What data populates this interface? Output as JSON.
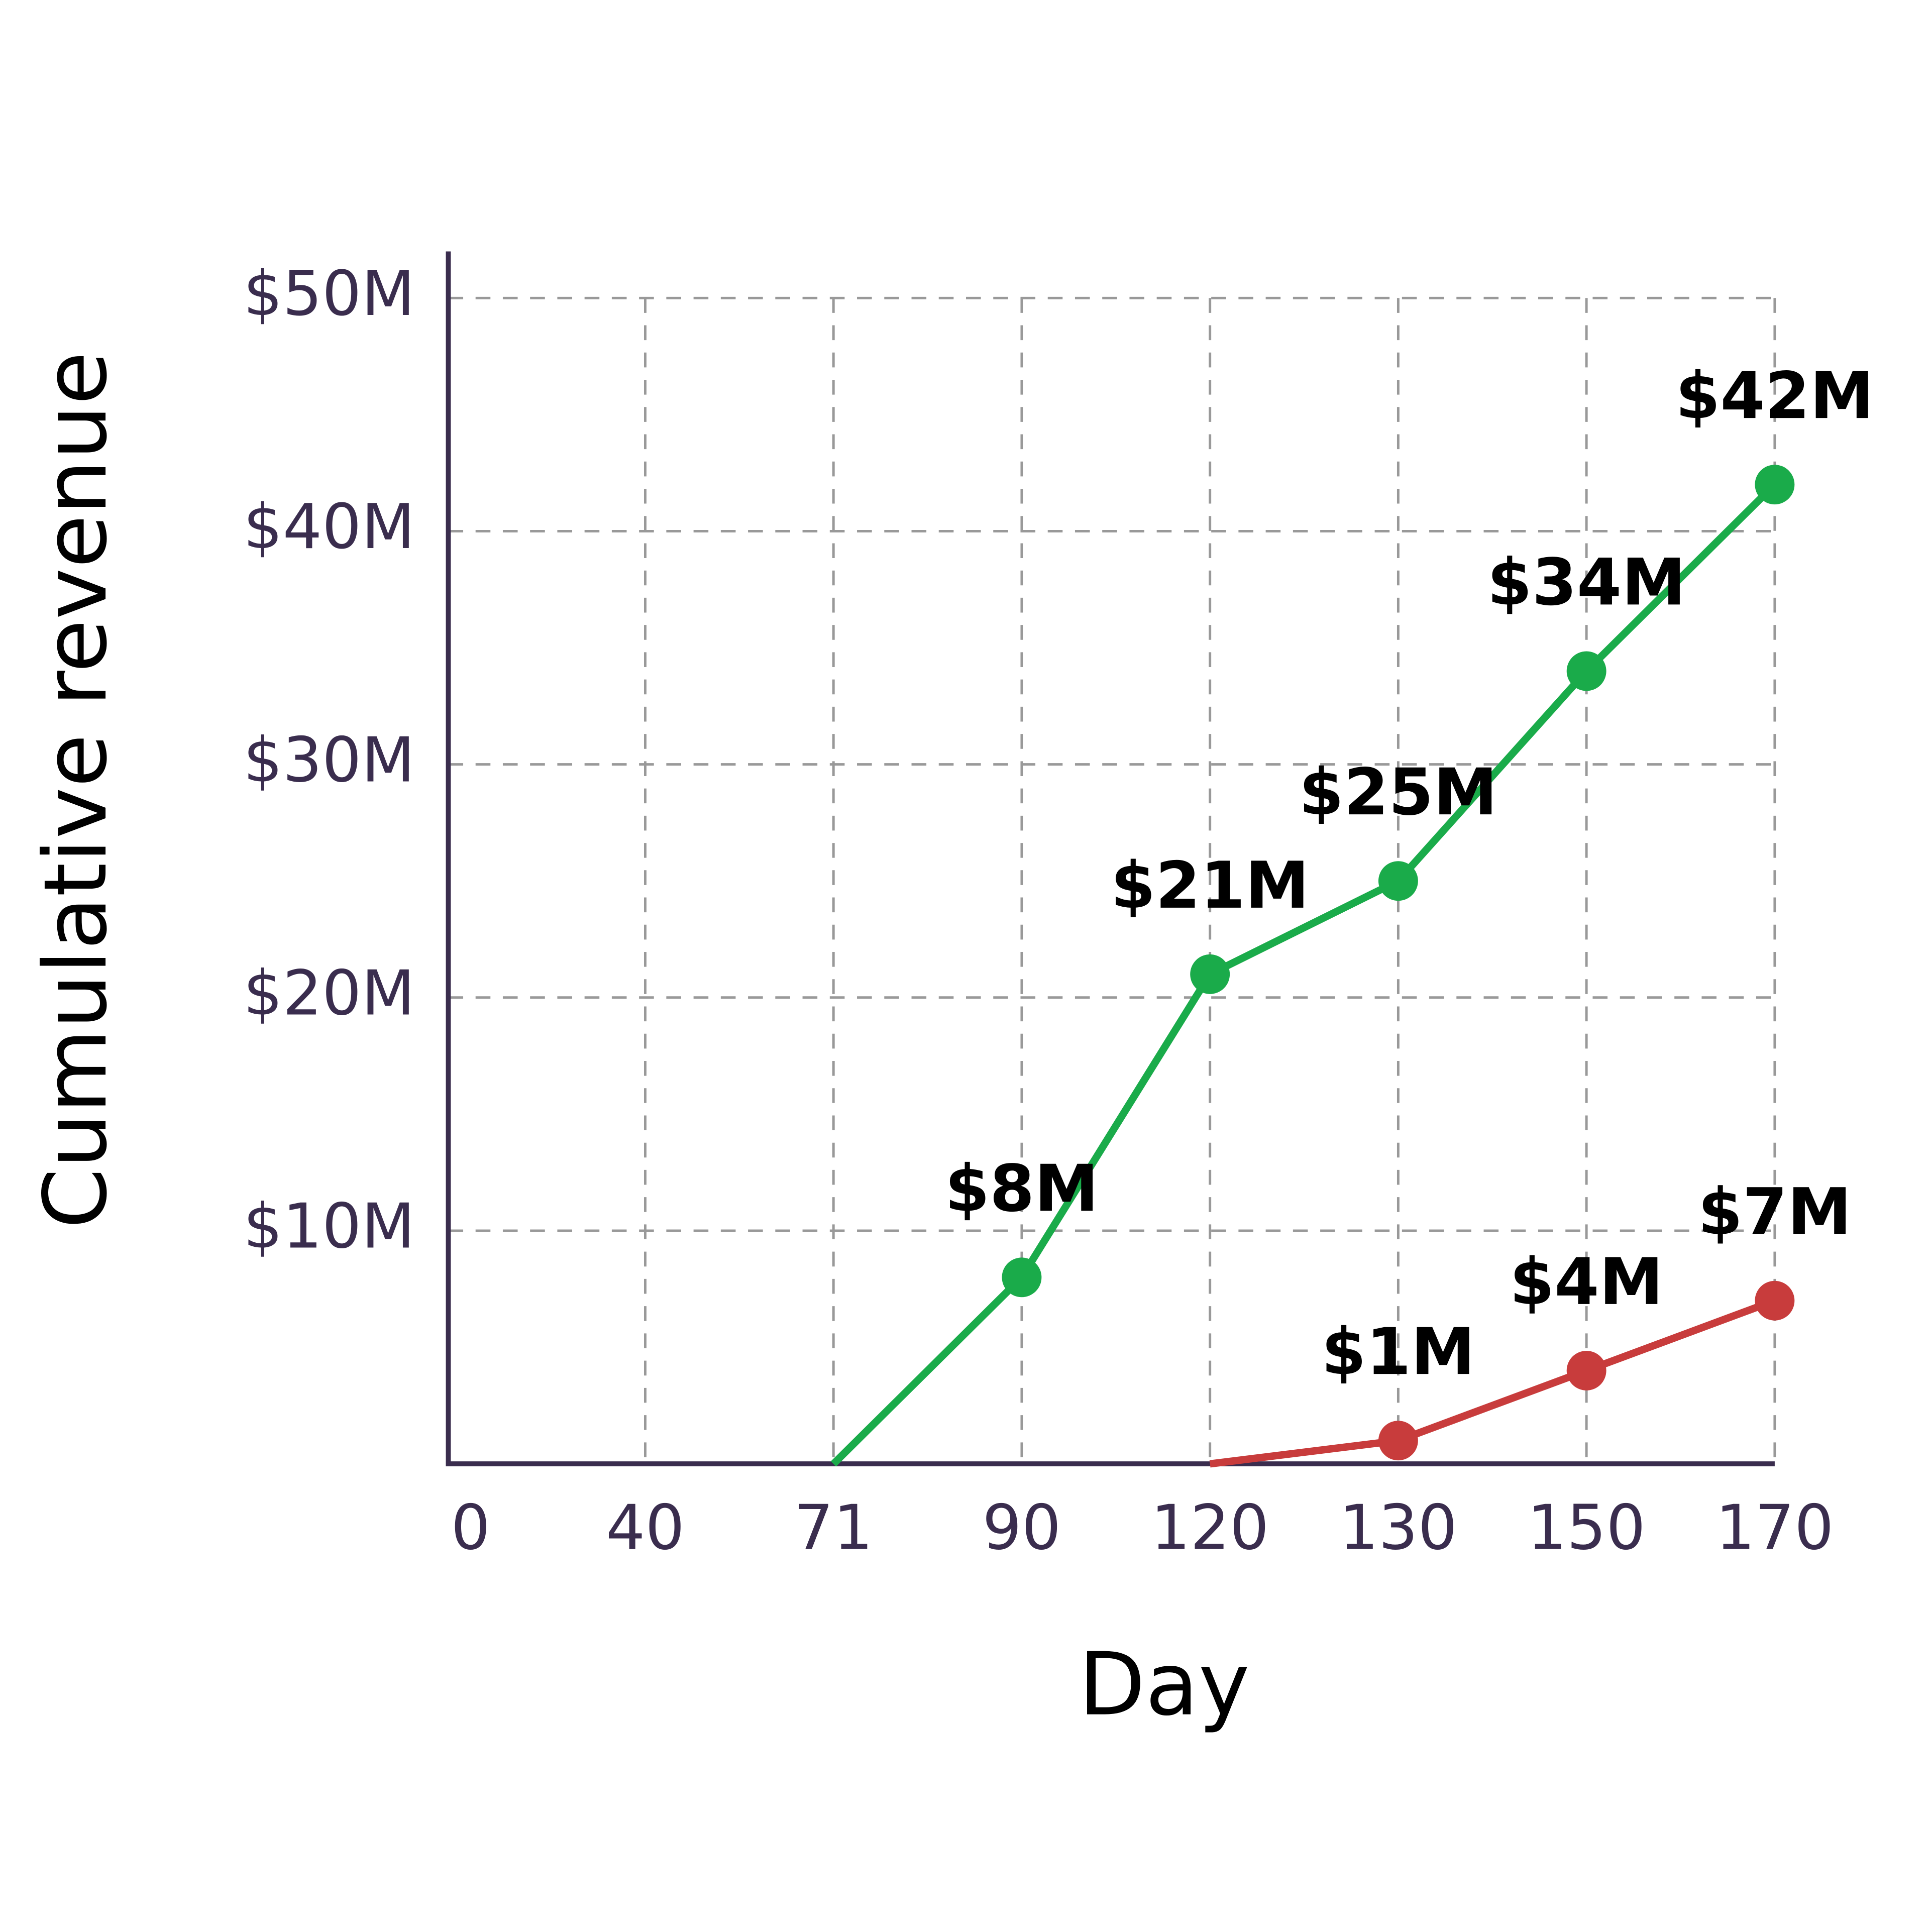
{
  "chart_data": {
    "type": "line",
    "x_label": "Day",
    "y_label": "Cumulative revenue",
    "categories": [
      "0",
      "40",
      "71",
      "90",
      "120",
      "130",
      "150",
      "170"
    ],
    "series": [
      {
        "color": "#1aab4a",
        "values": [
          null,
          null,
          0,
          8,
          21,
          25,
          34,
          42
        ],
        "value_labels": [
          null,
          null,
          null,
          "$8M",
          "$21M",
          "$25M",
          "$34M",
          "$42M"
        ]
      },
      {
        "color": "#c83c3c",
        "values": [
          null,
          null,
          null,
          null,
          0,
          1,
          4,
          7
        ],
        "value_labels": [
          null,
          null,
          null,
          null,
          null,
          "$1M",
          "$4M",
          "$7M"
        ]
      }
    ],
    "ylim": [
      0,
      52
    ],
    "yticks": [
      {
        "value": 10,
        "label": "$10M"
      },
      {
        "value": 20,
        "label": "$20M"
      },
      {
        "value": 30,
        "label": "$30M"
      },
      {
        "value": 40,
        "label": "$40M"
      },
      {
        "value": 50,
        "label": "$50M"
      }
    ],
    "grid": true
  }
}
